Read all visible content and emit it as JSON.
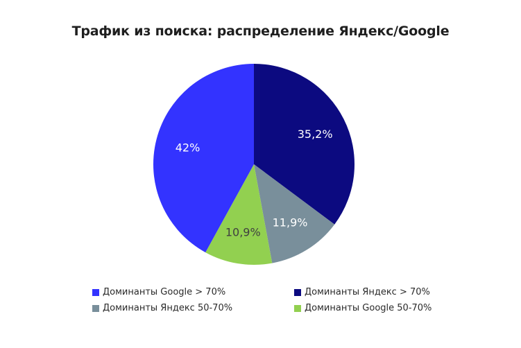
{
  "chart_data": {
    "type": "pie",
    "title": "Трафик из поиска: распределение Яндекс/Google",
    "slices": [
      {
        "label": "Доминанты Яндекс > 70%",
        "value": 35.2,
        "display": "35,2%",
        "color": "#0c0a80",
        "text_color": "#ffffff"
      },
      {
        "label": "Доминанты Яндекс 50-70%",
        "value": 11.9,
        "display": "11,9%",
        "color": "#798f9b",
        "text_color": "#ffffff"
      },
      {
        "label": "Доминанты Google 50-70%",
        "value": 10.9,
        "display": "10,9%",
        "color": "#92d050",
        "text_color": "#404040"
      },
      {
        "label": "Доминанты Google > 70%",
        "value": 42,
        "display": "42%",
        "color": "#3333ff",
        "text_color": "#ffffff"
      }
    ],
    "start_angle": "top, clockwise",
    "legend_position": "bottom"
  },
  "title": "Трафик из поиска: распределение Яндекс/Google",
  "legend": [
    {
      "label": "Доминанты Google > 70%",
      "color": "#3333ff"
    },
    {
      "label": "Доминанты Яндекс > 70%",
      "color": "#0c0a80"
    },
    {
      "label": "Доминанты Яндекс 50-70%",
      "color": "#798f9b"
    },
    {
      "label": "Доминанты Google 50-70%",
      "color": "#92d050"
    }
  ]
}
